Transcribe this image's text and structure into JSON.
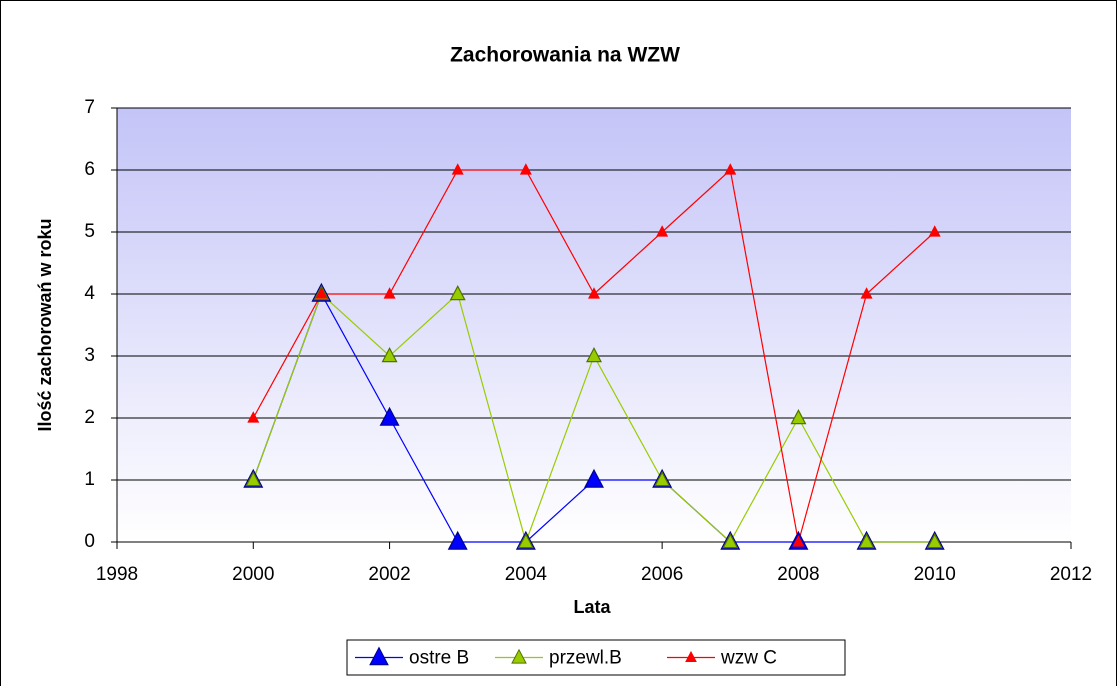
{
  "chart_data": {
    "type": "line",
    "title": "Zachorowania na WZW",
    "x_label": "Lata",
    "y_label": "Ilość zachorowań w roku",
    "x": [
      2000,
      2001,
      2002,
      2003,
      2004,
      2005,
      2006,
      2007,
      2008,
      2009,
      2010
    ],
    "series": [
      {
        "name": "ostre B",
        "color": "#0000ff",
        "values": [
          1,
          4,
          2,
          0,
          0,
          1,
          1,
          0,
          0,
          0,
          0
        ]
      },
      {
        "name": "przewl.B",
        "color": "#99cc00",
        "values": [
          1,
          4,
          3,
          4,
          0,
          3,
          1,
          0,
          2,
          0,
          0
        ]
      },
      {
        "name": "wzw C",
        "color": "#ff0000",
        "values": [
          2,
          4,
          4,
          6,
          6,
          4,
          5,
          6,
          0,
          4,
          5
        ]
      }
    ],
    "xlim": [
      1998,
      2012
    ],
    "xticks": [
      1998,
      2000,
      2002,
      2004,
      2006,
      2008,
      2010,
      2012
    ],
    "ylim": [
      0,
      7
    ],
    "yticks": [
      0,
      1,
      2,
      3,
      4,
      5,
      6,
      7
    ],
    "grid": true,
    "legend": "bottom"
  }
}
